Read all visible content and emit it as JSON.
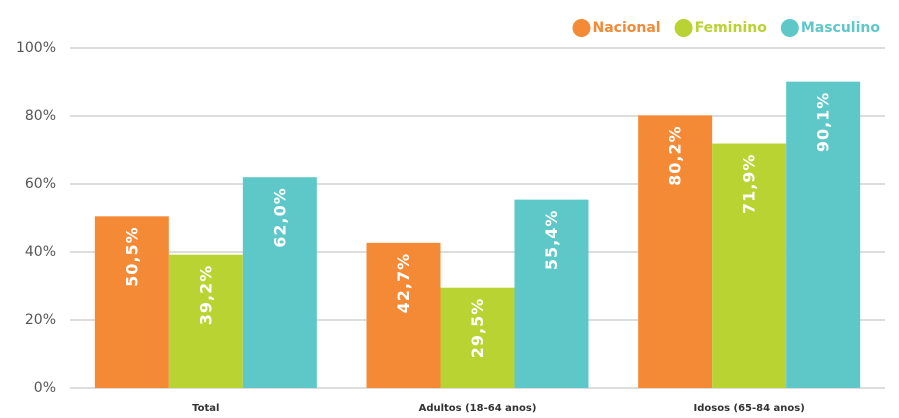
{
  "chart_data": {
    "type": "bar",
    "categories": [
      "Total",
      "Adultos (18-64 anos)",
      "Idosos (65-84 anos)"
    ],
    "series": [
      {
        "name": "Nacional",
        "color": "#f58a36",
        "values": [
          50.5,
          42.7,
          80.2
        ],
        "value_labels": [
          "50,5%",
          "42,7%",
          "80,2%"
        ]
      },
      {
        "name": "Feminino",
        "color": "#b9d332",
        "values": [
          39.2,
          29.5,
          71.9
        ],
        "value_labels": [
          "39,2%",
          "29,5%",
          "71,9%"
        ]
      },
      {
        "name": "Masculino",
        "color": "#5ec8c8",
        "values": [
          62.0,
          55.4,
          90.1
        ],
        "value_labels": [
          "62,0%",
          "55,4%",
          "90,1%"
        ]
      }
    ],
    "ylim": [
      0,
      100
    ],
    "yticks": [
      {
        "value": 0,
        "label": "0%"
      },
      {
        "value": 20,
        "label": "20%"
      },
      {
        "value": 40,
        "label": "40%"
      },
      {
        "value": 60,
        "label": "60%"
      },
      {
        "value": 80,
        "label": "80%"
      },
      {
        "value": 100,
        "label": "100%"
      }
    ],
    "grid": true,
    "legend": "top-right"
  }
}
